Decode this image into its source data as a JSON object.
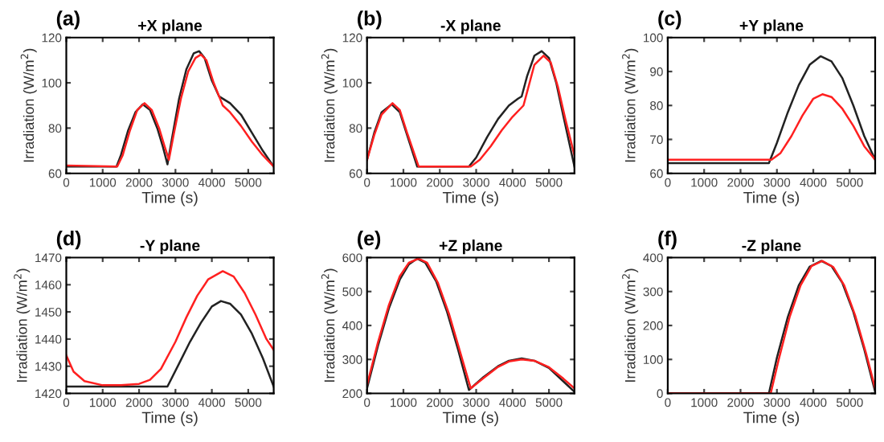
{
  "chart_data": [
    {
      "type": "line",
      "title": "+X plane",
      "xlabel": "Time (s)",
      "ylabel": "Irradiation (W/m$^{2}$)",
      "annotations": [
        "(a)"
      ],
      "xlim": [
        0,
        5700
      ],
      "xticks": [
        0,
        1000,
        2000,
        3000,
        4000,
        5000
      ],
      "ylim": [
        60,
        120
      ],
      "yticks": [
        60,
        80,
        100,
        120
      ],
      "series": [
        {
          "color": "#222222",
          "x": [
            0,
            1380,
            1500,
            1700,
            1900,
            2100,
            2300,
            2500,
            2650,
            2780,
            2900,
            3100,
            3300,
            3500,
            3650,
            3800,
            4000,
            4200,
            4250,
            4500,
            4800,
            5100,
            5400,
            5700
          ],
          "values": [
            63,
            63,
            68,
            79,
            87,
            90.5,
            88,
            80,
            72,
            64,
            75,
            93,
            106,
            113,
            114,
            111,
            101,
            94,
            93.5,
            91,
            86,
            78,
            70,
            63
          ]
        },
        {
          "color": "#ff2020",
          "x": [
            0,
            1400,
            1550,
            1750,
            1950,
            2150,
            2350,
            2550,
            2700,
            2820,
            2950,
            3150,
            3350,
            3550,
            3700,
            3850,
            4050,
            4250,
            4300,
            4500,
            4800,
            5100,
            5400,
            5700
          ],
          "values": [
            63.5,
            63,
            68,
            79,
            88,
            91,
            88,
            80,
            72,
            66,
            77,
            93,
            105,
            111,
            112.5,
            110,
            100,
            92,
            90,
            87,
            81,
            74,
            68,
            63
          ]
        }
      ]
    },
    {
      "type": "line",
      "title": "-X plane",
      "xlabel": "Time (s)",
      "ylabel": "Irradiation (W/m$^{2}$)",
      "annotations": [
        "(b)"
      ],
      "xlim": [
        0,
        5700
      ],
      "xticks": [
        0,
        1000,
        2000,
        3000,
        4000,
        5000
      ],
      "ylim": [
        60,
        120
      ],
      "yticks": [
        60,
        80,
        100,
        120
      ],
      "series": [
        {
          "color": "#222222",
          "x": [
            0,
            200,
            400,
            680,
            900,
            1100,
            1380,
            2800,
            3000,
            3300,
            3600,
            3900,
            4150,
            4250,
            4400,
            4600,
            4800,
            5000,
            5200,
            5400,
            5700
          ],
          "values": [
            66,
            78,
            87,
            90.5,
            87,
            77,
            63,
            63,
            67,
            76,
            84,
            90,
            93,
            94,
            103,
            112,
            114,
            111,
            100,
            85,
            63
          ]
        },
        {
          "color": "#ff2020",
          "x": [
            0,
            200,
            400,
            700,
            900,
            1100,
            1420,
            2850,
            3100,
            3400,
            3700,
            4000,
            4300,
            4400,
            4600,
            4850,
            5050,
            5250,
            5450,
            5700
          ],
          "values": [
            66,
            77,
            86,
            91,
            88,
            78,
            63,
            63,
            66,
            72,
            79,
            85,
            90,
            96,
            108,
            112,
            109,
            98,
            84,
            68
          ]
        }
      ]
    },
    {
      "type": "line",
      "title": "+Y plane",
      "xlabel": "Time (s)",
      "ylabel": "Irradiation (W/m$^{2}$)",
      "annotations": [
        "(c)"
      ],
      "xlim": [
        0,
        5700
      ],
      "xticks": [
        0,
        1000,
        2000,
        3000,
        4000,
        5000
      ],
      "ylim": [
        60,
        100
      ],
      "yticks": [
        60,
        70,
        80,
        90,
        100
      ],
      "series": [
        {
          "color": "#222222",
          "x": [
            0,
            2780,
            3000,
            3300,
            3600,
            3900,
            4200,
            4500,
            4800,
            5100,
            5400,
            5700
          ],
          "values": [
            63,
            63,
            69,
            78,
            86,
            92,
            94.5,
            93,
            88,
            80,
            71,
            64
          ]
        },
        {
          "color": "#ff2020",
          "x": [
            0,
            2850,
            3100,
            3400,
            3700,
            4000,
            4250,
            4500,
            4800,
            5100,
            5400,
            5700
          ],
          "values": [
            64,
            64,
            66,
            71,
            77,
            82,
            83.3,
            82.5,
            79,
            74,
            68,
            64
          ]
        }
      ]
    },
    {
      "type": "line",
      "title": "-Y plane",
      "xlabel": "Time (s)",
      "ylabel": "Irradiation (W/m$^{2}$)",
      "annotations": [
        "(d)"
      ],
      "xlim": [
        0,
        5700
      ],
      "xticks": [
        0,
        1000,
        2000,
        3000,
        4000,
        5000
      ],
      "ylim": [
        1420,
        1470
      ],
      "yticks": [
        1420,
        1430,
        1440,
        1450,
        1460,
        1470
      ],
      "series": [
        {
          "color": "#222222",
          "x": [
            0,
            2780,
            3100,
            3400,
            3700,
            4000,
            4250,
            4500,
            4800,
            5100,
            5400,
            5700
          ],
          "values": [
            1422.5,
            1422.5,
            1431,
            1439,
            1446,
            1452,
            1454,
            1453,
            1449,
            1442,
            1433,
            1422.5
          ]
        },
        {
          "color": "#ff2020",
          "x": [
            0,
            200,
            500,
            1000,
            1500,
            2000,
            2300,
            2600,
            3000,
            3300,
            3600,
            3900,
            4300,
            4600,
            4900,
            5200,
            5500,
            5700
          ],
          "values": [
            1434,
            1428,
            1424.5,
            1423,
            1423,
            1423.5,
            1425,
            1429,
            1439,
            1448,
            1456,
            1462,
            1465,
            1463,
            1457,
            1449,
            1440,
            1436
          ]
        }
      ]
    },
    {
      "type": "line",
      "title": "+Z plane",
      "xlabel": "Time (s)",
      "ylabel": "Irradiation (W/m$^{2}$)",
      "annotations": [
        "(e)"
      ],
      "xlim": [
        0,
        5700
      ],
      "xticks": [
        0,
        1000,
        2000,
        3000,
        4000,
        5000
      ],
      "ylim": [
        200,
        600
      ],
      "yticks": [
        200,
        300,
        400,
        500,
        600
      ],
      "series": [
        {
          "color": "#222222",
          "x": [
            0,
            300,
            600,
            900,
            1150,
            1380,
            1600,
            1900,
            2200,
            2500,
            2800,
            3200,
            3600,
            3900,
            4250,
            4600,
            5000,
            5400,
            5700
          ],
          "values": [
            215,
            340,
            450,
            535,
            580,
            597,
            585,
            530,
            440,
            330,
            210,
            248,
            280,
            296,
            303,
            296,
            275,
            235,
            205
          ]
        },
        {
          "color": "#ff2020",
          "x": [
            0,
            300,
            600,
            900,
            1150,
            1420,
            1650,
            1950,
            2250,
            2550,
            2850,
            3200,
            3600,
            3900,
            4250,
            4600,
            5000,
            5400,
            5700
          ],
          "values": [
            225,
            350,
            460,
            545,
            585,
            597,
            585,
            525,
            435,
            325,
            215,
            245,
            278,
            294,
            300,
            296,
            277,
            243,
            215
          ]
        }
      ]
    },
    {
      "type": "line",
      "title": "-Z plane",
      "xlabel": "Time (s)",
      "ylabel": "Irradiation (W/m$^{2}$)",
      "annotations": [
        "(f)"
      ],
      "xlim": [
        0,
        5700
      ],
      "xticks": [
        0,
        1000,
        2000,
        3000,
        4000,
        5000
      ],
      "ylim": [
        0,
        400
      ],
      "yticks": [
        0,
        100,
        200,
        300,
        400
      ],
      "series": [
        {
          "color": "#222222",
          "x": [
            0,
            2780,
            3000,
            3300,
            3600,
            3900,
            4220,
            4500,
            4800,
            5100,
            5400,
            5700
          ],
          "values": [
            0,
            0,
            105,
            225,
            318,
            373,
            390,
            375,
            325,
            240,
            130,
            5
          ]
        },
        {
          "color": "#ff2020",
          "x": [
            0,
            2830,
            3050,
            3350,
            3650,
            3950,
            4250,
            4550,
            4850,
            5150,
            5450,
            5700
          ],
          "values": [
            0,
            0,
            100,
            225,
            318,
            375,
            390,
            372,
            318,
            230,
            118,
            15
          ]
        }
      ]
    }
  ]
}
